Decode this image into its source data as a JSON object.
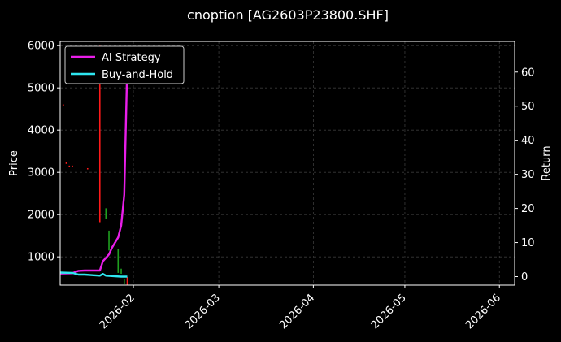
{
  "chart_data": {
    "type": "line",
    "title": "cnoption [AG2603P23800.SHF]",
    "ylabel_left": "Price",
    "ylabel_right": "Return",
    "xlim": [
      "2026-01-08",
      "2026-06-06"
    ],
    "ylim_left": [
      330,
      6100
    ],
    "ylim_right": [
      -2.5,
      69
    ],
    "x_ticks": [
      "2026-02",
      "2026-03",
      "2026-04",
      "2026-05",
      "2026-06"
    ],
    "y_ticks_left": [
      1000,
      2000,
      3000,
      4000,
      5000,
      6000
    ],
    "y_ticks_right": [
      0,
      10,
      20,
      30,
      40,
      50,
      60
    ],
    "grid": true,
    "legend_position": "top-left",
    "series": [
      {
        "name": "AI Strategy",
        "color": "#e91ee9",
        "axis": "right",
        "points": [
          [
            "2026-01-08",
            0.9
          ],
          [
            "2026-01-12",
            1.0
          ],
          [
            "2026-01-14",
            1.7
          ],
          [
            "2026-01-16",
            1.8
          ],
          [
            "2026-01-18",
            1.8
          ],
          [
            "2026-01-21",
            1.8
          ],
          [
            "2026-01-22",
            4.5
          ],
          [
            "2026-01-23",
            5.5
          ],
          [
            "2026-01-24",
            6.5
          ],
          [
            "2026-01-25",
            8.5
          ],
          [
            "2026-01-27",
            11.5
          ],
          [
            "2026-01-28",
            15.0
          ],
          [
            "2026-01-29",
            24.0
          ],
          [
            "2026-01-30",
            62.0
          ]
        ]
      },
      {
        "name": "Buy-and-Hold",
        "color": "#2ee6f0",
        "axis": "right",
        "points": [
          [
            "2026-01-08",
            1.2
          ],
          [
            "2026-01-12",
            1.1
          ],
          [
            "2026-01-14",
            0.6
          ],
          [
            "2026-01-16",
            0.6
          ],
          [
            "2026-01-19",
            0.4
          ],
          [
            "2026-01-21",
            0.3
          ],
          [
            "2026-01-22",
            0.8
          ],
          [
            "2026-01-23",
            0.3
          ],
          [
            "2026-01-26",
            0.1
          ],
          [
            "2026-01-28",
            0.0
          ],
          [
            "2026-01-30",
            0.0
          ]
        ]
      }
    ],
    "candles": [
      {
        "date": "2026-01-09",
        "low": 4580,
        "high": 4610,
        "dir": "down"
      },
      {
        "date": "2026-01-10",
        "low": 3200,
        "high": 3240,
        "dir": "down"
      },
      {
        "date": "2026-01-11",
        "low": 3130,
        "high": 3160,
        "dir": "down"
      },
      {
        "date": "2026-01-12",
        "low": 3130,
        "high": 3160,
        "dir": "down"
      },
      {
        "date": "2026-01-17",
        "low": 3070,
        "high": 3100,
        "dir": "down"
      },
      {
        "date": "2026-01-21",
        "low": 1820,
        "high": 6000,
        "dir": "down"
      },
      {
        "date": "2026-01-23",
        "low": 1900,
        "high": 2150,
        "dir": "up"
      },
      {
        "date": "2026-01-24",
        "low": 1150,
        "high": 1620,
        "dir": "up"
      },
      {
        "date": "2026-01-27",
        "low": 620,
        "high": 1180,
        "dir": "up"
      },
      {
        "date": "2026-01-28",
        "low": 600,
        "high": 720,
        "dir": "up"
      },
      {
        "date": "2026-01-29",
        "low": 360,
        "high": 480,
        "dir": "up"
      },
      {
        "date": "2026-01-30",
        "low": 330,
        "high": 520,
        "dir": "down"
      }
    ]
  },
  "colors": {
    "up": "#1fa01f",
    "down": "#ff1a1a",
    "background": "#000000",
    "text": "#ffffff"
  }
}
